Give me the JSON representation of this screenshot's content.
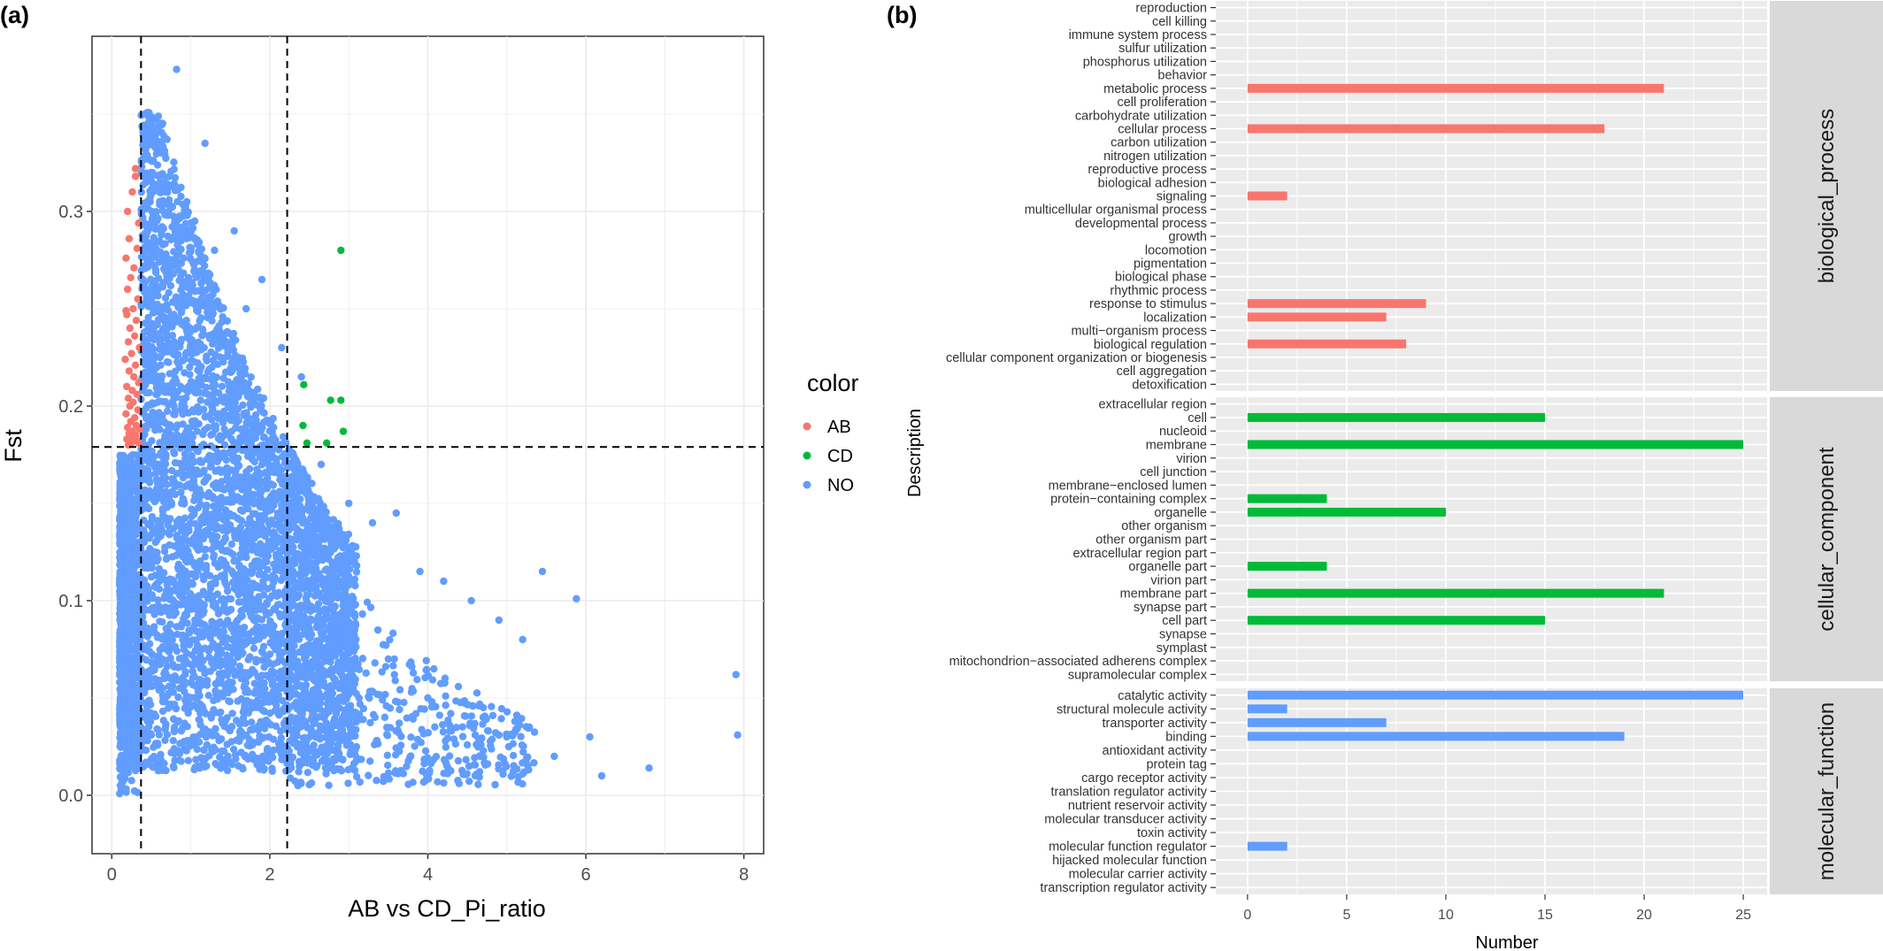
{
  "panel_labels": {
    "a": "(a)",
    "b": "(b)"
  },
  "colors": {
    "AB": "#F8766D",
    "CD": "#00BA38",
    "NO": "#619CFF",
    "panel_bg": "#EBEBEB",
    "strip_bg": "#D9D9D9"
  },
  "chart_data": [
    {
      "type": "scatter",
      "title": "",
      "xlabel": "AB vs CD_Pi_ratio",
      "ylabel": "Fst",
      "xlim": [
        -0.25,
        8.25
      ],
      "ylim": [
        -0.03,
        0.39
      ],
      "x_ticks": [
        0,
        2,
        4,
        6,
        8
      ],
      "y_ticks": [
        0.0,
        0.1,
        0.2,
        0.3
      ],
      "y_tick_labels": [
        "0.0",
        "0.1",
        "0.2",
        "0.3"
      ],
      "grid": true,
      "threshold_lines": {
        "vertical": [
          0.37,
          2.22
        ],
        "horizontal": [
          0.179
        ]
      },
      "legend": {
        "title": "color",
        "position": "right",
        "entries": [
          "AB",
          "CD",
          "NO"
        ]
      },
      "series": [
        {
          "name": "AB",
          "x": [
            0.3,
            0.26,
            0.2,
            0.34,
            0.22,
            0.32,
            0.18,
            0.28,
            0.24,
            0.2,
            0.33,
            0.27,
            0.19,
            0.31,
            0.23,
            0.29,
            0.21,
            0.35,
            0.25,
            0.17,
            0.3,
            0.22,
            0.28,
            0.34,
            0.19,
            0.26,
            0.32,
            0.21,
            0.27,
            0.23,
            0.33,
            0.18,
            0.29,
            0.24,
            0.31,
            0.2,
            0.35,
            0.26,
            0.22,
            0.3,
            0.28,
            0.19,
            0.32,
            0.25,
            0.21,
            0.34,
            0.27,
            0.23,
            0.3,
            0.18
          ],
          "y": [
            0.318,
            0.31,
            0.3,
            0.294,
            0.286,
            0.281,
            0.276,
            0.271,
            0.266,
            0.26,
            0.255,
            0.25,
            0.247,
            0.244,
            0.24,
            0.236,
            0.233,
            0.23,
            0.227,
            0.224,
            0.221,
            0.218,
            0.215,
            0.212,
            0.21,
            0.208,
            0.206,
            0.204,
            0.202,
            0.2,
            0.198,
            0.196,
            0.194,
            0.192,
            0.19,
            0.189,
            0.188,
            0.187,
            0.186,
            0.185,
            0.184,
            0.183,
            0.182,
            0.181,
            0.18,
            0.181,
            0.183,
            0.185,
            0.322,
            0.249
          ]
        },
        {
          "name": "CD",
          "x": [
            2.9,
            2.43,
            2.9,
            2.77,
            2.42,
            2.93,
            2.47,
            2.72
          ],
          "y": [
            0.28,
            0.211,
            0.203,
            0.203,
            0.19,
            0.187,
            0.181,
            0.181
          ]
        },
        {
          "name": "NO",
          "x": [
            0.82,
            0.45,
            1.18,
            0.61,
            1.55,
            0.95,
            1.9,
            0.72,
            1.3,
            2.15,
            0.5,
            1.05,
            1.7,
            2.4,
            0.88,
            2.65,
            3.0,
            3.3,
            3.6,
            3.9,
            4.2,
            4.55,
            4.9,
            5.2,
            5.45,
            5.88,
            6.05,
            6.8,
            7.9,
            7.92,
            3.5,
            4.0,
            4.7,
            5.0,
            5.6,
            6.2
          ],
          "y": [
            0.373,
            0.338,
            0.335,
            0.315,
            0.29,
            0.305,
            0.265,
            0.3,
            0.28,
            0.23,
            0.32,
            0.295,
            0.25,
            0.215,
            0.285,
            0.17,
            0.15,
            0.14,
            0.145,
            0.115,
            0.11,
            0.1,
            0.09,
            0.08,
            0.115,
            0.101,
            0.03,
            0.014,
            0.062,
            0.031,
            0.07,
            0.05,
            0.04,
            0.03,
            0.02,
            0.01
          ]
        }
      ]
    },
    {
      "type": "bar",
      "orientation": "horizontal",
      "title": "",
      "xlabel": "Number",
      "ylabel": "Description",
      "xlim": [
        -1.6,
        26.2
      ],
      "x_ticks": [
        0,
        5,
        10,
        15,
        20,
        25
      ],
      "grid": true,
      "facets": [
        {
          "name": "biological_process",
          "color": "#F8766D",
          "categories": [
            "reproduction",
            "cell killing",
            "immune system process",
            "sulfur utilization",
            "phosphorus utilization",
            "behavior",
            "metabolic process",
            "cell proliferation",
            "carbohydrate utilization",
            "cellular process",
            "carbon utilization",
            "nitrogen utilization",
            "reproductive process",
            "biological adhesion",
            "signaling",
            "multicellular organismal process",
            "developmental process",
            "growth",
            "locomotion",
            "pigmentation",
            "biological phase",
            "rhythmic process",
            "response to stimulus",
            "localization",
            "multi−organism process",
            "biological regulation",
            "cellular component organization or biogenesis",
            "cell aggregation",
            "detoxification"
          ],
          "values": [
            0,
            0,
            0,
            0,
            0,
            0,
            21,
            0,
            0,
            18,
            0,
            0,
            0,
            0,
            2,
            0,
            0,
            0,
            0,
            0,
            0,
            0,
            9,
            7,
            0,
            8,
            0,
            0,
            0
          ]
        },
        {
          "name": "cellular_component",
          "color": "#00BA38",
          "categories": [
            "extracellular region",
            "cell",
            "nucleoid",
            "membrane",
            "virion",
            "cell junction",
            "membrane−enclosed lumen",
            "protein−containing complex",
            "organelle",
            "other organism",
            "other organism part",
            "extracellular region part",
            "organelle part",
            "virion part",
            "membrane part",
            "synapse part",
            "cell part",
            "synapse",
            "symplast",
            "mitochondrion−associated adherens complex",
            "supramolecular complex"
          ],
          "values": [
            0,
            15,
            0,
            25,
            0,
            0,
            0,
            4,
            10,
            0,
            0,
            0,
            4,
            0,
            21,
            0,
            15,
            0,
            0,
            0,
            0
          ]
        },
        {
          "name": "molecular_function",
          "color": "#619CFF",
          "categories": [
            "catalytic activity",
            "structural molecule activity",
            "transporter activity",
            "binding",
            "antioxidant activity",
            "protein tag",
            "cargo receptor activity",
            "translation regulator activity",
            "nutrient reservoir activity",
            "molecular transducer activity",
            "toxin activity",
            "molecular function regulator",
            "hijacked molecular function",
            "molecular carrier activity",
            "transcription regulator activity"
          ],
          "values": [
            25,
            2,
            7,
            19,
            0,
            0,
            0,
            0,
            0,
            0,
            0,
            2,
            0,
            0,
            0
          ]
        }
      ]
    }
  ]
}
